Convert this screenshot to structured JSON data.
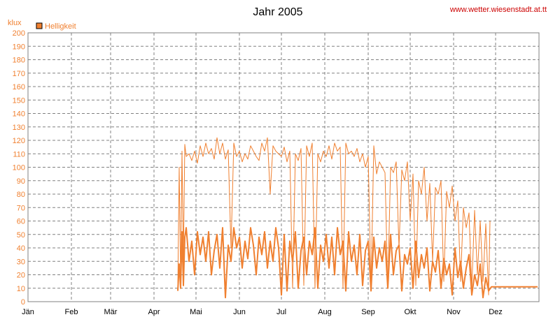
{
  "chart_data": {
    "type": "line",
    "title": "Jahr 2005",
    "source_label": "www.wetter.wiesenstadt.at.tt",
    "ylabel": "klux",
    "ylim": [
      0,
      200
    ],
    "y_ticks": [
      0,
      10,
      20,
      30,
      40,
      50,
      60,
      70,
      80,
      90,
      100,
      110,
      120,
      130,
      140,
      150,
      160,
      170,
      180,
      190,
      200
    ],
    "x_ticks": [
      "Jän",
      "Feb",
      "Mär",
      "Apr",
      "Mai",
      "Jun",
      "Jul",
      "Aug",
      "Sep",
      "Okt",
      "Nov",
      "Dez"
    ],
    "x_unit": "day of year 2005",
    "xlim": [
      1,
      366
    ],
    "grid": true,
    "legend": {
      "position": "top-left",
      "entries": [
        "Helligkeit"
      ]
    },
    "series": [
      {
        "name": "Helligkeit",
        "color": "#f08030",
        "style": "thin",
        "x": [
          108,
          109,
          110,
          111,
          112,
          113,
          114,
          116,
          118,
          120,
          122,
          124,
          126,
          128,
          130,
          132,
          134,
          136,
          138,
          140,
          142,
          144,
          146,
          148,
          150,
          152,
          154,
          156,
          158,
          160,
          162,
          164,
          166,
          168,
          170,
          172,
          174,
          176,
          178,
          180,
          182,
          184,
          186,
          188,
          190,
          192,
          194,
          196,
          198,
          200,
          202,
          204,
          206,
          208,
          210,
          212,
          214,
          216,
          218,
          220,
          222,
          224,
          226,
          228,
          230,
          232,
          234,
          236,
          238,
          240,
          242,
          244,
          246,
          248,
          250,
          252,
          254,
          256,
          258,
          260,
          262,
          264,
          266,
          268,
          270,
          272,
          274,
          276,
          278,
          280,
          282,
          284,
          286,
          288,
          290,
          292,
          294,
          296,
          298,
          300,
          302,
          304,
          306,
          308,
          310,
          312,
          314,
          316,
          318,
          320,
          322,
          324,
          326,
          328,
          330,
          331
        ],
        "y": [
          10,
          100,
          15,
          112,
          30,
          117,
          108,
          110,
          105,
          112,
          103,
          116,
          108,
          118,
          110,
          114,
          106,
          122,
          110,
          118,
          106,
          113,
          40,
          118,
          108,
          112,
          104,
          110,
          106,
          116,
          112,
          108,
          105,
          118,
          112,
          122,
          80,
          116,
          112,
          110,
          108,
          115,
          104,
          112,
          10,
          110,
          105,
          114,
          12,
          116,
          108,
          118,
          10,
          110,
          104,
          112,
          108,
          116,
          106,
          118,
          112,
          115,
          10,
          118,
          110,
          112,
          108,
          114,
          104,
          110,
          100,
          108,
          10,
          116,
          95,
          104,
          100,
          96,
          10,
          100,
          96,
          104,
          40,
          98,
          90,
          104,
          60,
          95,
          12,
          90,
          80,
          100,
          60,
          88,
          30,
          85,
          80,
          90,
          15,
          82,
          70,
          86,
          60,
          75,
          15,
          70,
          55,
          66,
          10,
          68,
          20,
          60,
          15,
          58,
          5,
          60
        ]
      },
      {
        "name": "Helligkeit",
        "color": "#f08030",
        "style": "thick",
        "x": [
          108,
          109,
          110,
          111,
          112,
          113,
          114,
          116,
          118,
          120,
          122,
          124,
          126,
          128,
          130,
          132,
          134,
          136,
          138,
          140,
          142,
          144,
          146,
          148,
          150,
          152,
          154,
          156,
          158,
          160,
          162,
          164,
          166,
          168,
          170,
          172,
          174,
          176,
          178,
          180,
          182,
          184,
          186,
          188,
          190,
          192,
          194,
          196,
          198,
          200,
          202,
          204,
          206,
          208,
          210,
          212,
          214,
          216,
          218,
          220,
          222,
          224,
          226,
          228,
          230,
          232,
          234,
          236,
          238,
          240,
          242,
          244,
          246,
          248,
          250,
          252,
          254,
          256,
          258,
          260,
          262,
          264,
          266,
          268,
          270,
          272,
          274,
          276,
          278,
          280,
          282,
          284,
          286,
          288,
          290,
          292,
          294,
          296,
          298,
          300,
          302,
          304,
          306,
          308,
          310,
          312,
          314,
          316,
          318,
          320,
          322,
          324,
          326,
          328,
          330,
          332,
          334,
          336,
          338,
          340,
          342,
          344,
          346,
          348,
          350,
          352,
          354,
          356,
          358,
          360,
          362,
          364,
          365
        ],
        "y": [
          8,
          28,
          10,
          52,
          12,
          48,
          55,
          30,
          45,
          20,
          52,
          35,
          48,
          30,
          52,
          20,
          38,
          50,
          25,
          55,
          3,
          42,
          30,
          55,
          40,
          48,
          25,
          45,
          32,
          55,
          42,
          20,
          48,
          35,
          52,
          25,
          45,
          30,
          55,
          40,
          5,
          50,
          8,
          45,
          30,
          52,
          10,
          38,
          48,
          20,
          45,
          35,
          55,
          10,
          42,
          30,
          50,
          25,
          48,
          20,
          55,
          35,
          45,
          8,
          52,
          30,
          42,
          20,
          50,
          12,
          38,
          45,
          8,
          48,
          25,
          40,
          30,
          45,
          10,
          50,
          20,
          38,
          42,
          8,
          35,
          28,
          40,
          10,
          45,
          18,
          35,
          25,
          40,
          8,
          30,
          22,
          38,
          10,
          32,
          20,
          28,
          5,
          40,
          18,
          30,
          10,
          25,
          35,
          5,
          20,
          12,
          28,
          3,
          18,
          8,
          11,
          11,
          11,
          11,
          11,
          11,
          11,
          11,
          11,
          11,
          11,
          11,
          11,
          11,
          11,
          11,
          11,
          11
        ]
      }
    ]
  }
}
